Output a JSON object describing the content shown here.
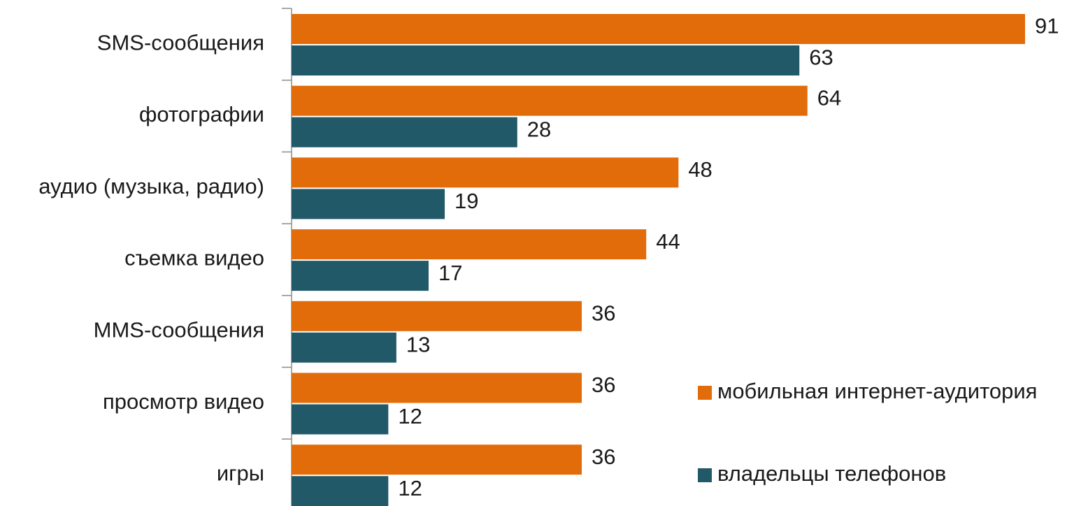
{
  "chart_data": {
    "type": "barh",
    "categories": [
      "SMS-сообщения",
      "фотографии",
      "аудио (музыка, радио)",
      "съемка видео",
      "MMS-сообщения",
      "просмотр видео",
      "игры"
    ],
    "series": [
      {
        "name": "мобильная интернет-аудитория",
        "color": "#e36c0a",
        "values": [
          91,
          64,
          48,
          44,
          36,
          36,
          36
        ]
      },
      {
        "name": "владельцы телефонов",
        "color": "#215968",
        "values": [
          63,
          28,
          19,
          17,
          13,
          12,
          12
        ]
      }
    ],
    "legend": "right"
  }
}
